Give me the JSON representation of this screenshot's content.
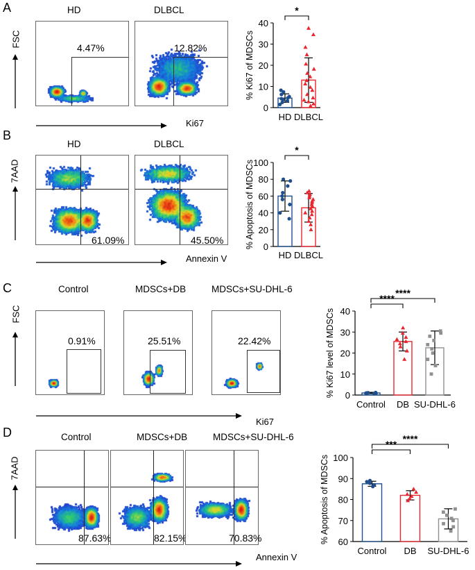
{
  "panels": {
    "A": {
      "letter": "A",
      "y_axis": "FSC",
      "x_axis": "Ki67",
      "samples": [
        {
          "title": "HD",
          "percent": "4.47%"
        },
        {
          "title": "DLBCL",
          "percent": "12.82%"
        }
      ]
    },
    "B": {
      "letter": "B",
      "y_axis": "7AAD",
      "x_axis": "Annexin V",
      "samples": [
        {
          "title": "HD",
          "percent": "61.09%"
        },
        {
          "title": "DLBCL",
          "percent": "45.50%"
        }
      ]
    },
    "C": {
      "letter": "C",
      "y_axis": "FSC",
      "x_axis": "Ki67",
      "samples": [
        {
          "title": "Control",
          "percent": "0.91%"
        },
        {
          "title": "MDSCs+DB",
          "percent": "25.51%"
        },
        {
          "title": "MDSCs+SU-DHL-6",
          "percent": "22.42%"
        }
      ]
    },
    "D": {
      "letter": "D",
      "y_axis": "7AAD",
      "x_axis": "Annexin V",
      "samples": [
        {
          "title": "Control",
          "percent": "87.63%"
        },
        {
          "title": "MDSCs+DB",
          "percent": "82.15%"
        },
        {
          "title": "MDSCs+SU-DHL-6",
          "percent": "70.83%"
        }
      ]
    }
  },
  "chart_data": [
    {
      "id": "A",
      "type": "bar",
      "ylabel": "% Ki67 of MDSCs",
      "ylim": [
        0,
        40
      ],
      "yticks": [
        0,
        10,
        20,
        30,
        40
      ],
      "categories": [
        "HD",
        "DLBCL"
      ],
      "values": [
        4.5,
        13
      ],
      "errors": [
        2,
        10.5
      ],
      "colors": [
        "#1f4e8c",
        "#e8262e"
      ],
      "markers": [
        "circle",
        "triangle"
      ],
      "points": [
        [
          1.5,
          2.5,
          3.2,
          3.8,
          4.2,
          4.6,
          5.2,
          6.2,
          7.4,
          8.2
        ],
        [
          0.8,
          1.8,
          2.8,
          3.6,
          4.6,
          6.2,
          8.2,
          9.6,
          11.2,
          12.8,
          14.6,
          16.2,
          18.2,
          20.6,
          25,
          28.5,
          34.5,
          37.5
        ]
      ],
      "comparisons": [
        {
          "from": 0,
          "to": 1,
          "label": "*"
        }
      ]
    },
    {
      "id": "B",
      "type": "bar",
      "ylabel": "% Apoptosis of MDSCs",
      "ylim": [
        0,
        100
      ],
      "yticks": [
        0,
        20,
        40,
        60,
        80,
        100
      ],
      "categories": [
        "HD",
        "DLBCL"
      ],
      "values": [
        60,
        46
      ],
      "errors": [
        18,
        17
      ],
      "colors": [
        "#1f4e8c",
        "#e8262e"
      ],
      "markers": [
        "circle",
        "triangle"
      ],
      "points": [
        [
          33,
          40,
          50,
          56,
          60,
          64,
          72,
          78,
          80
        ],
        [
          20,
          26,
          30,
          34,
          38,
          40,
          42,
          45,
          48,
          50,
          52,
          54,
          56,
          58,
          60,
          62,
          64,
          66
        ]
      ],
      "comparisons": [
        {
          "from": 0,
          "to": 1,
          "label": "*"
        }
      ]
    },
    {
      "id": "C",
      "type": "bar",
      "ylabel": "% Ki67 level of MDSCs",
      "ylim": [
        0,
        40
      ],
      "yticks": [
        0,
        10,
        20,
        30,
        40
      ],
      "categories": [
        "Control",
        "DB",
        "SU-DHL-6"
      ],
      "values": [
        1,
        25.5,
        22.5
      ],
      "errors": [
        0.3,
        4.5,
        8
      ],
      "colors": [
        "#1f4e8c",
        "#e8262e",
        "#909090"
      ],
      "markers": [
        "circle",
        "triangle",
        "square"
      ],
      "points": [
        [
          0.6,
          0.8,
          0.9,
          1.0,
          1.1,
          1.2
        ],
        [
          17,
          21,
          23,
          24.5,
          25.5,
          26.5,
          27.5,
          29.5,
          32
        ],
        [
          10,
          14,
          17,
          20,
          22,
          24,
          26,
          28,
          29.5,
          30.5
        ]
      ],
      "comparisons": [
        {
          "from": 0,
          "to": 1,
          "label": "****"
        },
        {
          "from": 0,
          "to": 2,
          "label": "****"
        }
      ]
    },
    {
      "id": "D",
      "type": "bar",
      "ylabel": "% Apoptosis of MDSCs",
      "ylim": [
        60,
        100
      ],
      "yticks": [
        60,
        70,
        80,
        90,
        100
      ],
      "categories": [
        "Control",
        "DB",
        "SU-DHL-6"
      ],
      "values": [
        87.5,
        82,
        70.8
      ],
      "errors": [
        1.2,
        2.2,
        4.8
      ],
      "colors": [
        "#1f4e8c",
        "#e8262e",
        "#909090"
      ],
      "markers": [
        "circle",
        "triangle",
        "square"
      ],
      "points": [
        [
          86.2,
          87,
          87.8,
          88.5,
          89
        ],
        [
          79.5,
          80.5,
          81.5,
          82.5,
          83.5,
          85
        ],
        [
          65,
          67,
          68.5,
          70,
          71,
          72.5,
          74,
          75.5
        ]
      ],
      "comparisons": [
        {
          "from": 0,
          "to": 1,
          "label": "***"
        },
        {
          "from": 0,
          "to": 2,
          "label": "****"
        }
      ]
    }
  ]
}
